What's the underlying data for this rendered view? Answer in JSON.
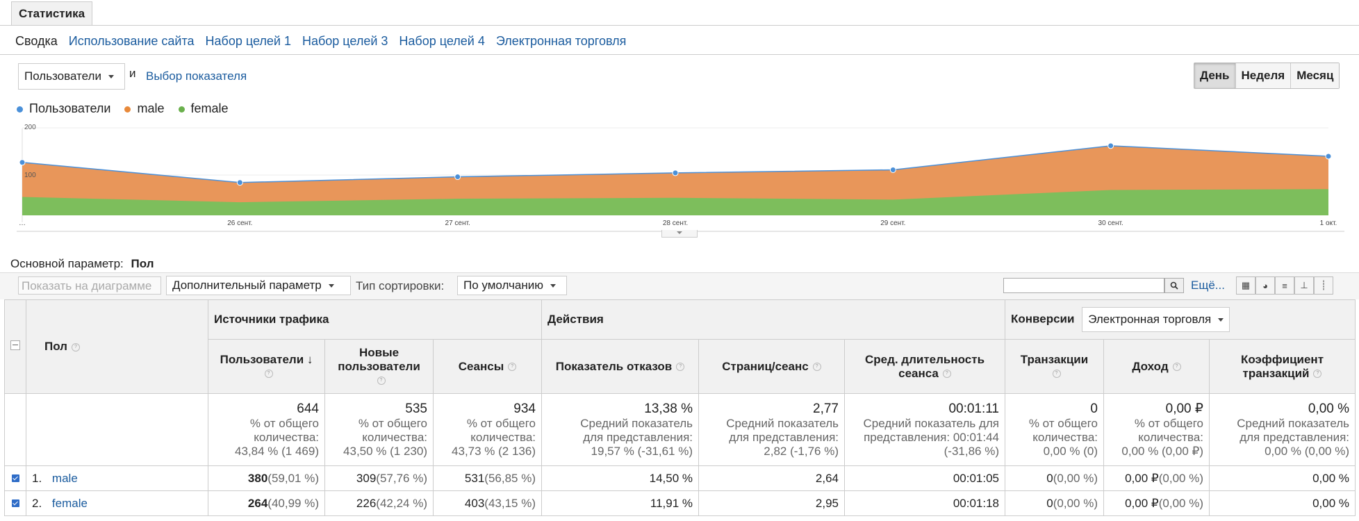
{
  "tabs": {
    "main": "Статистика"
  },
  "subtabs": [
    "Сводка",
    "Использование сайта",
    "Набор целей 1",
    "Набор целей 3",
    "Набор целей 4",
    "Электронная торговля"
  ],
  "metric": {
    "selected": "Пользователи",
    "and": "и",
    "choose": "Выбор показателя"
  },
  "period": {
    "day": "День",
    "week": "Неделя",
    "month": "Месяц"
  },
  "legend": [
    {
      "name": "Пользователи",
      "color": "#4a90d9"
    },
    {
      "name": "male",
      "color": "#e8893a"
    },
    {
      "name": "female",
      "color": "#6ab04c"
    }
  ],
  "chart_data": {
    "type": "area",
    "x": [
      "…",
      "26 сент.",
      "27 сент.",
      "28 сент.",
      "29 сент.",
      "30 сент.",
      "1 окт."
    ],
    "ytick_labels": [
      "200",
      "100"
    ],
    "ylim": [
      0,
      200
    ],
    "series": [
      {
        "name": "Пользователи",
        "values": [
          121,
          75,
          88,
          97,
          104,
          159,
          135
        ]
      },
      {
        "name": "female",
        "values": [
          42,
          30,
          38,
          40,
          36,
          58,
          60
        ]
      }
    ],
    "colors": {
      "users_line": "#4a90d9",
      "male_fill": "#e8965a",
      "female_fill": "#7dbe5c"
    }
  },
  "primary": {
    "label": "Основной параметр:",
    "value": "Пол"
  },
  "controls": {
    "show_on_chart": "Показать на диаграмме",
    "secondary": "Дополнительный параметр",
    "sort_label": "Тип сортировки:",
    "sort_value": "По умолчанию",
    "more": "Ещё..."
  },
  "table": {
    "dim_header": "Пол",
    "groups": {
      "traffic": "Источники трафика",
      "actions": "Действия",
      "conversions": "Конверсии",
      "conv_select": "Электронная торговля"
    },
    "columns": {
      "users": "Пользователи",
      "new_users": "Новые пользователи",
      "sessions": "Сеансы",
      "bounce": "Показатель отказов",
      "pages": "Страниц/сеанс",
      "duration": "Сред. длительность сеанса",
      "transactions": "Транзакции",
      "revenue": "Доход",
      "conv_rate": "Коэффициент транзакций"
    },
    "totals": {
      "users": {
        "v": "644",
        "l1": "% от общего",
        "l2": "количества:",
        "l3": "43,84 % (1 469)"
      },
      "new_users": {
        "v": "535",
        "l1": "% от общего",
        "l2": "количества:",
        "l3": "43,50 % (1 230)"
      },
      "sessions": {
        "v": "934",
        "l1": "% от общего",
        "l2": "количества:",
        "l3": "43,73 % (2 136)"
      },
      "bounce": {
        "v": "13,38 %",
        "l1": "Средний показатель",
        "l2": "для представления:",
        "l3": "19,57 % (-31,61 %)"
      },
      "pages": {
        "v": "2,77",
        "l1": "Средний показатель",
        "l2": "для представления:",
        "l3": "2,82 (-1,76 %)"
      },
      "duration": {
        "v": "00:01:11",
        "l1": "Средний показатель для",
        "l2": "представления: 00:01:44",
        "l3": "(-31,86 %)"
      },
      "transactions": {
        "v": "0",
        "l1": "% от общего",
        "l2": "количества:",
        "l3": "0,00 % (0)"
      },
      "revenue": {
        "v": "0,00 ₽",
        "l1": "% от общего",
        "l2": "количества:",
        "l3": "0,00 % (0,00 ₽)"
      },
      "conv_rate": {
        "v": "0,00 %",
        "l1": "Средний показатель",
        "l2": "для представления:",
        "l3": "0,00 % (0,00 %)"
      }
    },
    "rows": [
      {
        "idx": "1.",
        "name": "male",
        "users": "380",
        "users_pct": "(59,01 %)",
        "new_users": "309",
        "new_users_pct": "(57,76 %)",
        "sessions": "531",
        "sessions_pct": "(56,85 %)",
        "bounce": "14,50 %",
        "pages": "2,64",
        "duration": "00:01:05",
        "transactions": "0",
        "transactions_pct": "(0,00 %)",
        "revenue": "0,00 ₽",
        "revenue_pct": "(0,00 %)",
        "conv_rate": "0,00 %"
      },
      {
        "idx": "2.",
        "name": "female",
        "users": "264",
        "users_pct": "(40,99 %)",
        "new_users": "226",
        "new_users_pct": "(42,24 %)",
        "sessions": "403",
        "sessions_pct": "(43,15 %)",
        "bounce": "11,91 %",
        "pages": "2,95",
        "duration": "00:01:18",
        "transactions": "0",
        "transactions_pct": "(0,00 %)",
        "revenue": "0,00 ₽",
        "revenue_pct": "(0,00 %)",
        "conv_rate": "0,00 %"
      }
    ]
  }
}
